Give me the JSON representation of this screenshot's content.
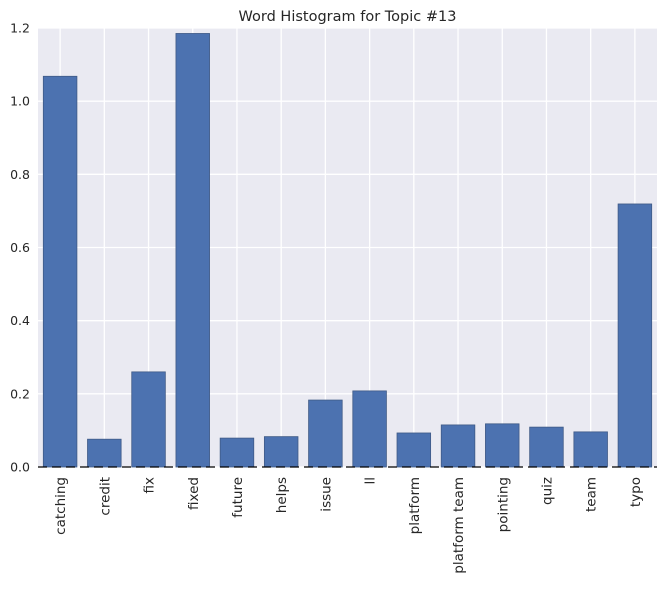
{
  "chart_data": {
    "type": "bar",
    "title": "Word Histogram for Topic #13",
    "xlabel": "",
    "ylabel": "",
    "categories": [
      "catching",
      "credit",
      "fix",
      "fixed",
      "future",
      "helps",
      "issue",
      "ll",
      "platform",
      "platform team",
      "pointing",
      "quiz",
      "team",
      "typo"
    ],
    "values": [
      1.068,
      0.076,
      0.26,
      1.185,
      0.079,
      0.083,
      0.183,
      0.208,
      0.093,
      0.115,
      0.118,
      0.109,
      0.096,
      0.719
    ],
    "ylim": [
      0,
      1.2
    ],
    "yticks": [
      "0.0",
      "0.2",
      "0.4",
      "0.6",
      "0.8",
      "1.0",
      "1.2"
    ],
    "grid": true,
    "bar_color": "#4c72b0",
    "background_color": "#eaeaf2"
  }
}
